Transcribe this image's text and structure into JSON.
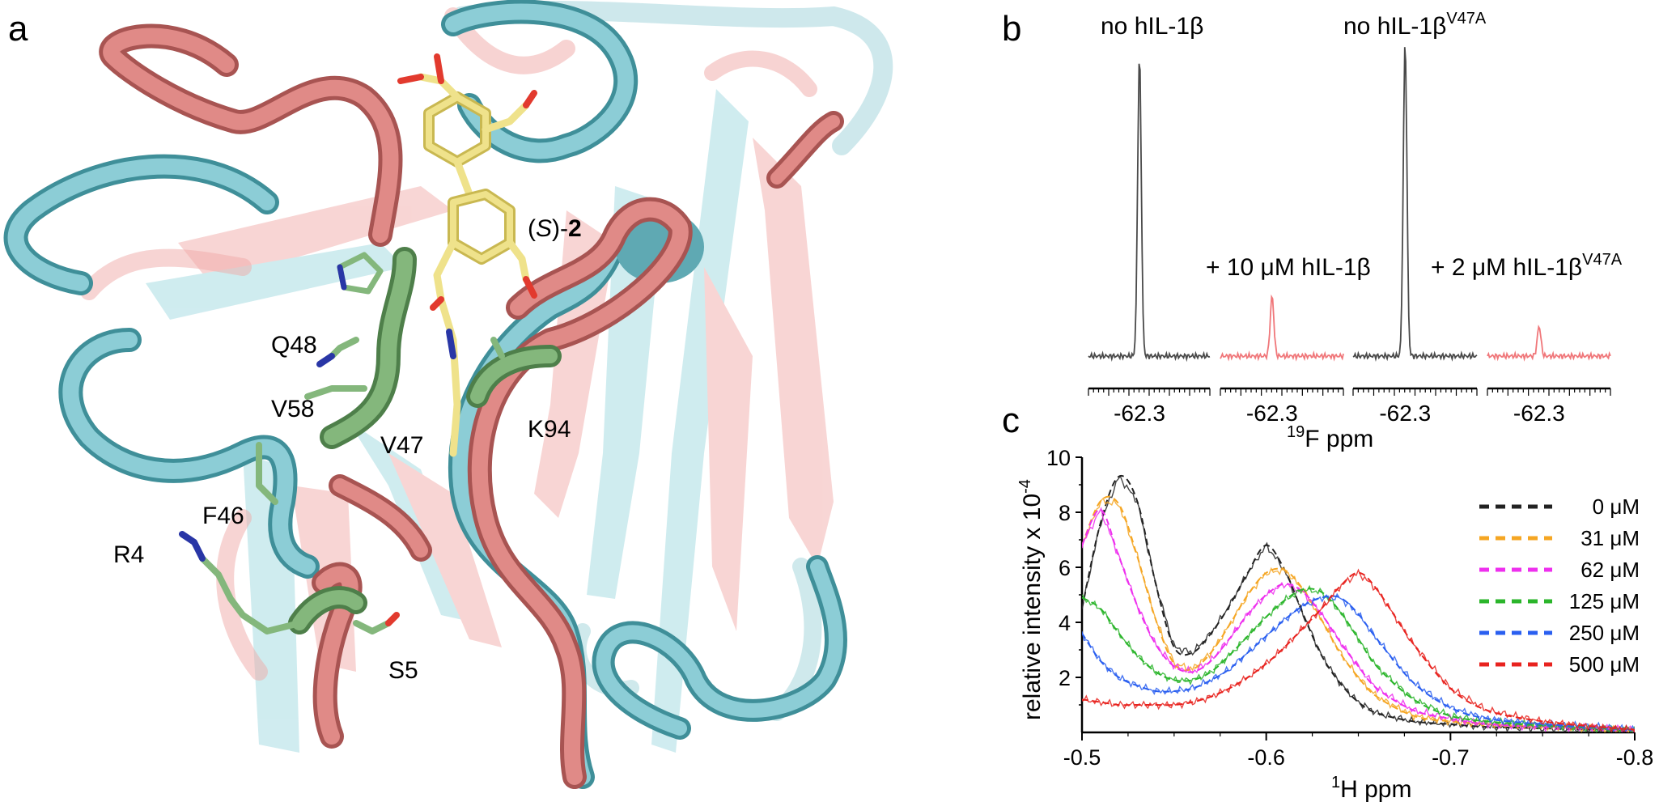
{
  "panel_a": {
    "letter": "a",
    "ligand": {
      "open": "(",
      "stereo": "S",
      "mid": ")-",
      "num": "2"
    },
    "residues": [
      "Q48",
      "V58",
      "V47",
      "K94",
      "F46",
      "R4",
      "S5"
    ]
  },
  "panel_b": {
    "letter": "b",
    "labels": {
      "ref1": "no hIL-1β",
      "ref2_base": "no hIL-1β",
      "ref2_sup": "V47A",
      "add1": "+ 10 μM hIL-1β",
      "add2_base": "+ 2 μM hIL-1β",
      "add2_sup": "V47A"
    },
    "tick": "-62.3",
    "xlabel_sup": "19",
    "xlabel_base": "F ppm"
  },
  "panel_c": {
    "letter": "c",
    "ylabel": "relative intensity x 10",
    "ylabel_sup": "-4",
    "xlabel_sup": "1",
    "xlabel_base": "H ppm"
  },
  "chart_data": [
    {
      "type": "line",
      "panel": "b",
      "xlabel": "19F ppm",
      "segments": [
        {
          "name": "no hIL-1β",
          "tick": -62.3,
          "peak_height": 1.0,
          "color": "#4a4a4a"
        },
        {
          "name": "+ 10 μM hIL-1β",
          "tick": -62.3,
          "peak_height": 0.2,
          "color": "#f0777a"
        },
        {
          "name": "no hIL-1βV47A",
          "tick": -62.3,
          "peak_height": 1.05,
          "color": "#4a4a4a"
        },
        {
          "name": "+ 2 μM hIL-1βV47A",
          "tick": -62.3,
          "peak_height": 0.1,
          "color": "#f0777a"
        }
      ]
    },
    {
      "type": "line",
      "panel": "c",
      "xlabel": "1H ppm",
      "ylabel": "relative intensity x 10-4",
      "xlim": [
        -0.5,
        -0.8
      ],
      "ylim": [
        0,
        10
      ],
      "xticks": [
        -0.5,
        -0.6,
        -0.7,
        -0.8
      ],
      "yticks": [
        2,
        4,
        6,
        8,
        10
      ],
      "legend_position": "right",
      "series": [
        {
          "name": "0 μM",
          "color": "#222222",
          "x": [
            -0.5,
            -0.51,
            -0.52,
            -0.53,
            -0.54,
            -0.55,
            -0.56,
            -0.57,
            -0.58,
            -0.59,
            -0.6,
            -0.61,
            -0.62,
            -0.63,
            -0.64,
            -0.65,
            -0.66,
            -0.68,
            -0.7,
            -0.72,
            -0.75,
            -0.78,
            -0.8
          ],
          "y": [
            4.5,
            7.6,
            9.3,
            8.4,
            5.4,
            3.1,
            2.9,
            3.6,
            4.6,
            5.8,
            6.8,
            5.9,
            4.3,
            2.8,
            1.8,
            1.1,
            0.7,
            0.4,
            0.3,
            0.2,
            0.15,
            0.1,
            0.1
          ]
        },
        {
          "name": "31 μM",
          "color": "#f5a623",
          "x": [
            -0.5,
            -0.51,
            -0.52,
            -0.53,
            -0.54,
            -0.55,
            -0.56,
            -0.57,
            -0.58,
            -0.59,
            -0.6,
            -0.61,
            -0.62,
            -0.63,
            -0.64,
            -0.65,
            -0.66,
            -0.68,
            -0.7,
            -0.72,
            -0.75,
            -0.78,
            -0.8
          ],
          "y": [
            6.8,
            8.4,
            8.3,
            6.4,
            4.1,
            2.5,
            2.3,
            2.9,
            3.9,
            5.0,
            5.8,
            5.9,
            5.2,
            4.1,
            2.9,
            2.0,
            1.3,
            0.6,
            0.4,
            0.3,
            0.2,
            0.15,
            0.1
          ]
        },
        {
          "name": "62 μM",
          "color": "#ee2fee",
          "x": [
            -0.5,
            -0.51,
            -0.52,
            -0.53,
            -0.54,
            -0.55,
            -0.56,
            -0.57,
            -0.58,
            -0.59,
            -0.6,
            -0.61,
            -0.62,
            -0.63,
            -0.64,
            -0.65,
            -0.66,
            -0.68,
            -0.7,
            -0.72,
            -0.75,
            -0.78,
            -0.8
          ],
          "y": [
            6.8,
            8.1,
            6.4,
            4.6,
            3.2,
            2.4,
            2.2,
            2.6,
            3.4,
            4.3,
            5.0,
            5.4,
            5.1,
            4.3,
            3.3,
            2.4,
            1.6,
            0.8,
            0.5,
            0.3,
            0.2,
            0.15,
            0.1
          ]
        },
        {
          "name": "125 μM",
          "color": "#2bb52b",
          "x": [
            -0.5,
            -0.51,
            -0.52,
            -0.53,
            -0.54,
            -0.55,
            -0.56,
            -0.57,
            -0.58,
            -0.59,
            -0.6,
            -0.61,
            -0.62,
            -0.63,
            -0.64,
            -0.65,
            -0.66,
            -0.68,
            -0.7,
            -0.72,
            -0.75,
            -0.78,
            -0.8
          ],
          "y": [
            4.9,
            4.5,
            3.6,
            2.8,
            2.2,
            1.9,
            1.9,
            2.2,
            2.8,
            3.5,
            4.2,
            4.8,
            5.2,
            5.1,
            4.4,
            3.4,
            2.4,
            1.2,
            0.6,
            0.4,
            0.25,
            0.15,
            0.1
          ]
        },
        {
          "name": "250 μM",
          "color": "#2a5ff0",
          "x": [
            -0.5,
            -0.51,
            -0.52,
            -0.53,
            -0.54,
            -0.55,
            -0.56,
            -0.57,
            -0.58,
            -0.59,
            -0.6,
            -0.61,
            -0.62,
            -0.63,
            -0.64,
            -0.65,
            -0.66,
            -0.68,
            -0.7,
            -0.72,
            -0.75,
            -0.78,
            -0.8
          ],
          "y": [
            3.6,
            2.6,
            2.0,
            1.7,
            1.5,
            1.5,
            1.6,
            1.9,
            2.3,
            2.9,
            3.5,
            4.1,
            4.6,
            4.9,
            4.9,
            4.3,
            3.4,
            1.8,
            0.9,
            0.5,
            0.3,
            0.2,
            0.1
          ]
        },
        {
          "name": "500 μM",
          "color": "#e8231f",
          "x": [
            -0.5,
            -0.51,
            -0.52,
            -0.53,
            -0.54,
            -0.55,
            -0.56,
            -0.57,
            -0.58,
            -0.59,
            -0.6,
            -0.61,
            -0.62,
            -0.63,
            -0.64,
            -0.65,
            -0.66,
            -0.68,
            -0.7,
            -0.72,
            -0.75,
            -0.78,
            -0.8
          ],
          "y": [
            1.2,
            1.1,
            1.0,
            1.0,
            1.0,
            1.0,
            1.1,
            1.3,
            1.6,
            2.0,
            2.5,
            3.1,
            3.8,
            4.5,
            5.3,
            5.8,
            5.2,
            3.2,
            1.6,
            0.8,
            0.4,
            0.2,
            0.1
          ]
        }
      ]
    }
  ]
}
